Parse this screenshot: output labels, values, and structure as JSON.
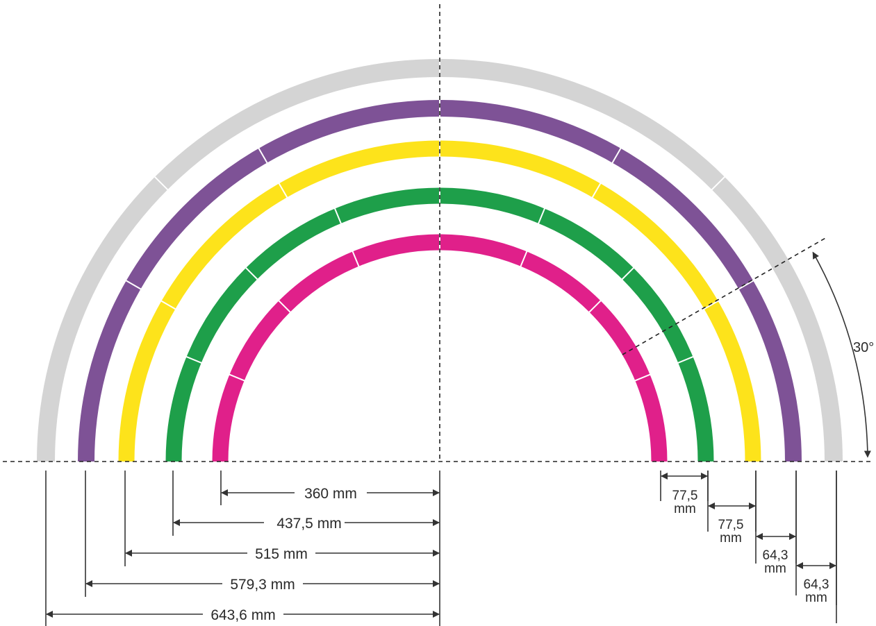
{
  "rings": [
    {
      "name": "outer-grey-ring",
      "color": "#d4d4d4",
      "radius_label": "643,6 mm",
      "segments": 4
    },
    {
      "name": "purple-ring",
      "color": "#7e5296",
      "radius_label": "579,3 mm",
      "segments": 6
    },
    {
      "name": "yellow-ring",
      "color": "#fde31b",
      "radius_label": "515 mm",
      "segments": 6
    },
    {
      "name": "green-ring",
      "color": "#1e9f4a",
      "radius_label": "437,5 mm",
      "segments": 8
    },
    {
      "name": "magenta-ring",
      "color": "#e0208a",
      "radius_label": "360 mm",
      "segments": 8
    }
  ],
  "gap_labels": [
    {
      "value": "77,5",
      "unit": "mm"
    },
    {
      "value": "77,5",
      "unit": "mm"
    },
    {
      "value": "64,3",
      "unit": "mm"
    },
    {
      "value": "64,3",
      "unit": "mm"
    }
  ],
  "angle_label": "30°"
}
